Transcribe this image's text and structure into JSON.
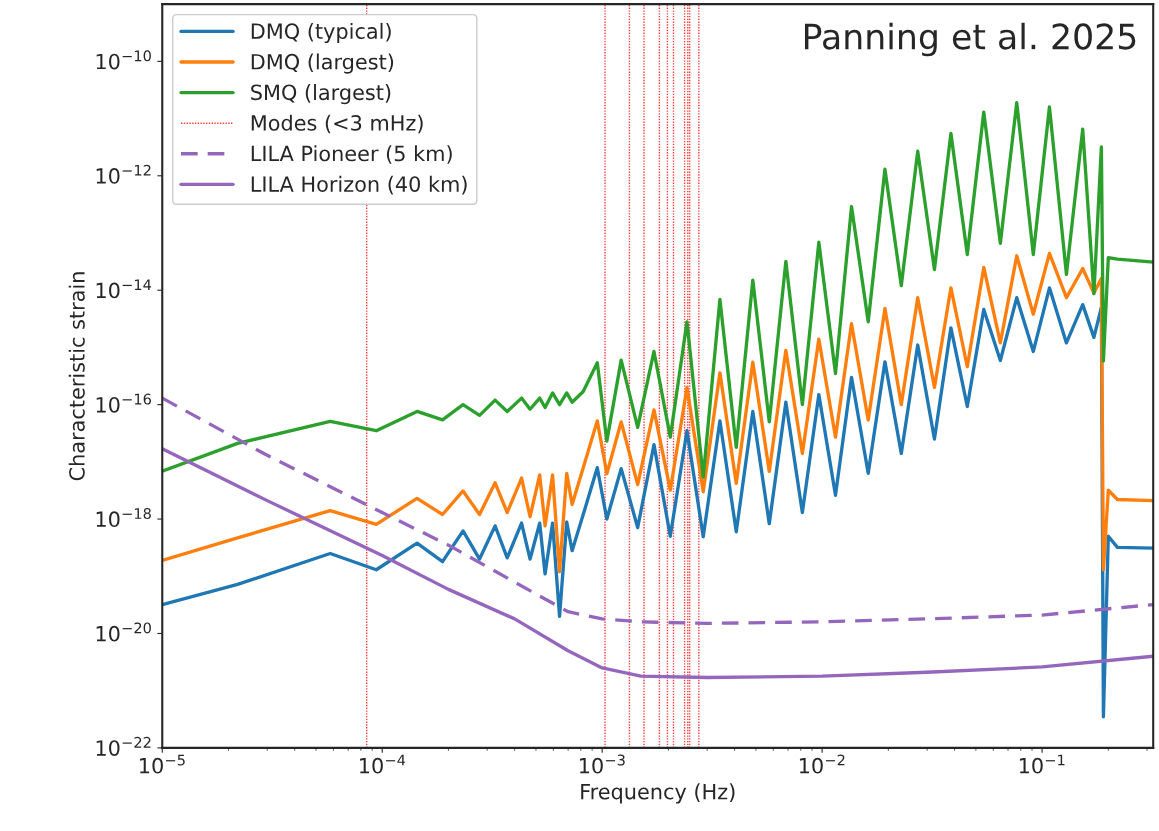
{
  "chart_data": {
    "type": "line",
    "xlabel": "Frequency (Hz)",
    "ylabel": "Characteristic strain",
    "annotations": [
      "Panning et al. 2025"
    ],
    "log": "xy",
    "legend": "top left",
    "grid": false,
    "xlim": [
      1e-05,
      0.32
    ],
    "xticks": [
      {
        "value": 1e-05,
        "label": "10$^{−5}$"
      },
      {
        "value": 0.0001,
        "label": "10$^{−4}$"
      },
      {
        "value": 0.001,
        "label": "10$^{−3}$"
      },
      {
        "value": 0.01,
        "label": "10$^{−2}$"
      },
      {
        "value": 0.1,
        "label": "10$^{−1}$"
      }
    ],
    "ylim": [
      1e-22,
      1e-09
    ],
    "yticks": [
      {
        "value": 1e-22,
        "label": "10$^{−22}$"
      },
      {
        "value": 1e-20,
        "label": "10$^{−20}$"
      },
      {
        "value": 1e-18,
        "label": "10$^{−18}$"
      },
      {
        "value": 1e-16,
        "label": "10$^{−16}$"
      },
      {
        "value": 1e-14,
        "label": "10$^{−14}$"
      },
      {
        "value": 1e-12,
        "label": "10$^{−12}$"
      },
      {
        "value": 1e-10,
        "label": "10$^{−10}$"
      }
    ],
    "x": [
      1e-05,
      2.2e-05,
      5.8e-05,
      9.4e-05,
      0.000144,
      0.000188,
      0.000233,
      0.000277,
      0.000326,
      0.00037,
      0.00043,
      0.00047,
      0.00052,
      0.00055,
      0.000595,
      0.00064,
      0.00069,
      0.00073,
      0.00082,
      0.00095,
      0.00105,
      0.00122,
      0.00145,
      0.00172,
      0.00204,
      0.00243,
      0.00288,
      0.00343,
      0.00407,
      0.00484,
      0.00575,
      0.00684,
      0.00813,
      0.00966,
      0.0115,
      0.0136,
      0.0162,
      0.0193,
      0.0229,
      0.0272,
      0.0324,
      0.0385,
      0.0457,
      0.0543,
      0.0646,
      0.0767,
      0.0912,
      0.108,
      0.129,
      0.153,
      0.172,
      0.186,
      0.19,
      0.2,
      0.22,
      0.32
    ],
    "series": [
      {
        "name": "DMQ (typical)",
        "color": "#1f77b4",
        "values": [
          3.2e-20,
          7.2e-20,
          2.5e-19,
          1.3e-19,
          3.8e-19,
          1.8e-19,
          6.2e-19,
          2e-19,
          7.6e-19,
          2.1e-19,
          8.5e-19,
          2e-19,
          8.5e-19,
          1.1e-19,
          8.5e-19,
          2e-20,
          8.9e-19,
          2.8e-19,
          1.2e-18,
          7.9e-18,
          1e-18,
          7.6e-18,
          7.1e-19,
          2e-17,
          5e-19,
          3.5e-17,
          4.9e-19,
          5.2e-17,
          6e-19,
          7.6e-17,
          8.3e-19,
          1.1e-16,
          1.3e-18,
          1.5e-16,
          2.6e-18,
          3e-16,
          6.3e-18,
          5.6e-16,
          1.4e-17,
          1.1e-15,
          2.5e-17,
          2.2e-15,
          9.3e-17,
          4.6e-15,
          5.9e-16,
          7.4e-15,
          8.5e-16,
          1.1e-14,
          1.2e-15,
          5.6e-15,
          1.5e-15,
          5e-15,
          3.5e-22,
          5e-19,
          3.2e-19,
          3.1e-19
        ]
      },
      {
        "name": "DMQ (largest)",
        "color": "#ff7f0e",
        "values": [
          1.9e-19,
          4.7e-19,
          1.4e-18,
          8.1e-19,
          2.3e-18,
          1.2e-18,
          3.1e-18,
          1.2e-18,
          4.3e-18,
          1.3e-18,
          5.2e-18,
          1.1e-18,
          5.9e-18,
          7.6e-19,
          5.9e-18,
          1.2e-19,
          6.3e-18,
          1.8e-18,
          7.9e-18,
          5.2e-17,
          6.2e-18,
          5e-17,
          4e-18,
          8.1e-17,
          3.2e-18,
          2e-16,
          3e-18,
          3.6e-16,
          4.2e-18,
          5.5e-16,
          6.8e-18,
          8.9e-16,
          1.4e-17,
          1.4e-15,
          2.7e-17,
          2.6e-15,
          5.4e-17,
          4.8e-15,
          1e-16,
          7.4e-15,
          2e-16,
          1.1e-14,
          4.6e-16,
          2.5e-14,
          1.2e-15,
          4e-14,
          3.8e-15,
          4.4e-14,
          7.4e-15,
          2.4e-14,
          8.9e-15,
          1.6e-14,
          1.3e-19,
          3.2e-18,
          2.2e-18,
          2.1e-18
        ]
      },
      {
        "name": "SMQ (largest)",
        "color": "#2ca02c",
        "values": [
          6.9e-18,
          2.1e-17,
          5.1e-17,
          3.5e-17,
          7.6e-17,
          5.4e-17,
          1e-16,
          6.5e-17,
          1.2e-16,
          7.6e-17,
          1.3e-16,
          8.3e-17,
          1.3e-16,
          8.9e-17,
          1.6e-16,
          1e-16,
          1.6e-16,
          1.1e-16,
          1.7e-16,
          5.4e-16,
          2.3e-17,
          6e-16,
          4e-17,
          8.5e-16,
          2.7e-17,
          2.8e-15,
          5.4e-18,
          6.9e-15,
          1.8e-17,
          1.5e-14,
          5e-17,
          3.2e-14,
          1e-16,
          6.9e-14,
          3.5e-16,
          2.9e-13,
          2.8e-15,
          1.3e-12,
          1.2e-14,
          2.7e-12,
          2.3e-14,
          5.5e-12,
          4.2e-14,
          1.3e-11,
          6.6e-14,
          1.9e-11,
          4.2e-14,
          1.6e-11,
          1.9e-14,
          6.5e-12,
          8.7e-15,
          3.2e-12,
          5.8e-16,
          3.7e-14,
          3.5e-14,
          3.1e-14
        ]
      },
      {
        "name": "LILA Pioneer (5 km)",
        "color": "#9467bd",
        "line_style": "dashed",
        "x": [
          1e-05,
          3e-05,
          0.0001,
          0.0002,
          0.0004,
          0.0007,
          0.001,
          0.0015,
          0.003,
          0.01,
          0.03,
          0.1,
          0.32
        ],
        "values": [
          1.3e-16,
          1.3e-17,
          1.3e-18,
          3.5e-19,
          7.9e-20,
          2.4e-20,
          1.8e-20,
          1.6e-20,
          1.5e-20,
          1.6e-20,
          1.8e-20,
          2.1e-20,
          3.2e-20
        ]
      },
      {
        "name": "LILA Horizon (40 km)",
        "color": "#9467bd",
        "line_style": "solid",
        "x": [
          1e-05,
          3e-05,
          0.0001,
          0.0002,
          0.0004,
          0.0007,
          0.001,
          0.0015,
          0.003,
          0.01,
          0.03,
          0.1,
          0.32
        ],
        "values": [
          1.7e-17,
          2.1e-18,
          2.3e-19,
          5.9e-20,
          1.8e-20,
          5e-21,
          2.5e-21,
          1.8e-21,
          1.7e-21,
          1.8e-21,
          2.1e-21,
          2.6e-21,
          4e-21
        ]
      }
    ],
    "ref_lines": [
      {
        "axis": "x",
        "value": 8.5e-05,
        "label": "Modes (<3 mHz)",
        "color": "#ff3b3b",
        "line_style": "dotted"
      },
      {
        "axis": "x",
        "value": 0.00103,
        "color": "#ff3b3b",
        "line_style": "dotted"
      },
      {
        "axis": "x",
        "value": 0.00133,
        "color": "#ff3b3b",
        "line_style": "dotted"
      },
      {
        "axis": "x",
        "value": 0.00155,
        "color": "#ff3b3b",
        "line_style": "dotted"
      },
      {
        "axis": "x",
        "value": 0.00182,
        "color": "#ff3b3b",
        "line_style": "dotted"
      },
      {
        "axis": "x",
        "value": 0.00198,
        "color": "#ff3b3b",
        "line_style": "dotted"
      },
      {
        "axis": "x",
        "value": 0.00211,
        "color": "#ff3b3b",
        "line_style": "dotted"
      },
      {
        "axis": "x",
        "value": 0.00237,
        "color": "#ff3b3b",
        "line_style": "dotted"
      },
      {
        "axis": "x",
        "value": 0.00245,
        "color": "#ff3b3b",
        "line_style": "dotted"
      },
      {
        "axis": "x",
        "value": 0.0025,
        "color": "#ff3b3b",
        "line_style": "dotted"
      },
      {
        "axis": "x",
        "value": 0.00275,
        "color": "#ff3b3b",
        "line_style": "dotted"
      }
    ]
  }
}
